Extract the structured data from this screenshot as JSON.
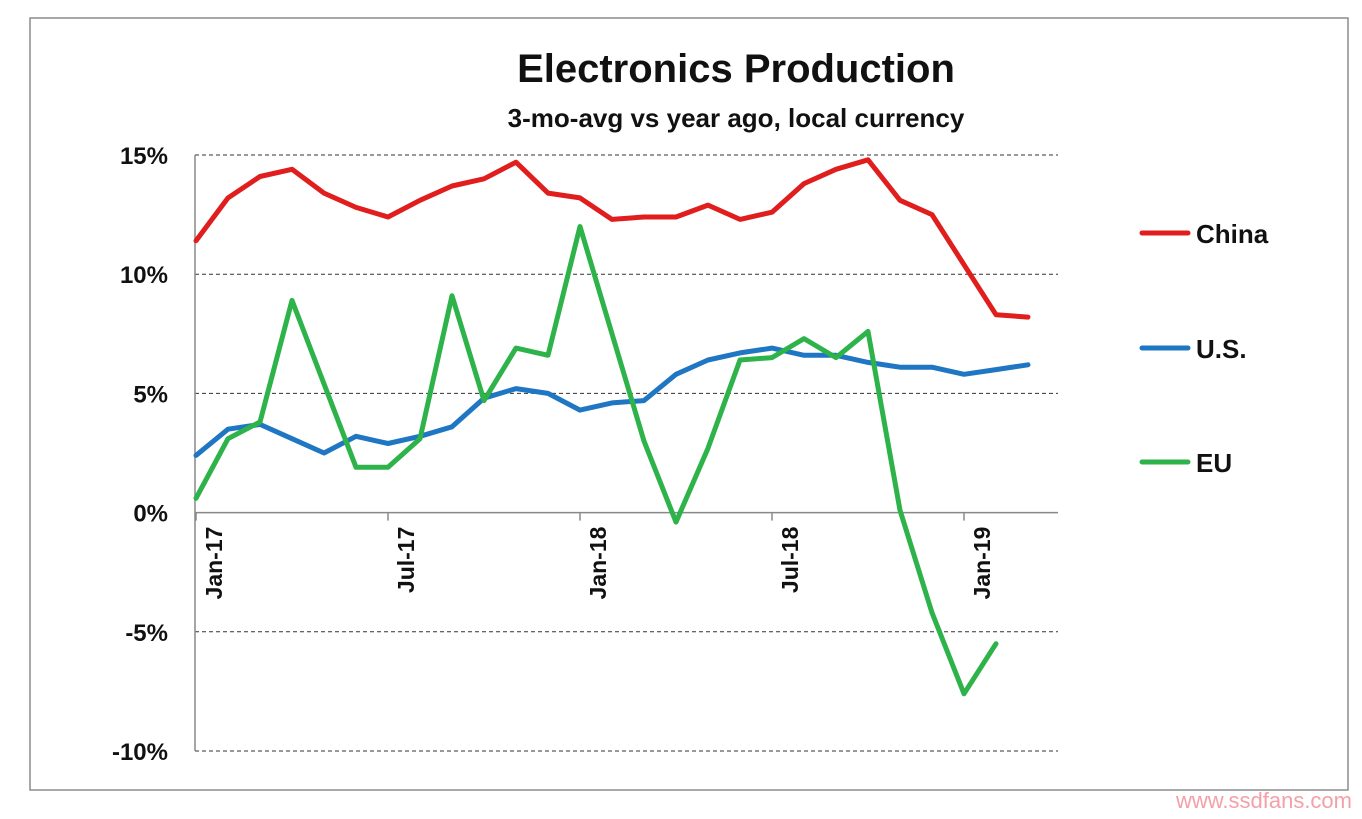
{
  "watermark": "www.ssdfans.com",
  "chart_data": {
    "type": "line",
    "title": "Electronics Production",
    "subtitle": "3-mo-avg vs year ago, local currency",
    "xlabel": "",
    "ylabel": "",
    "ylim": [
      -10,
      15
    ],
    "yticks": [
      15,
      10,
      5,
      0,
      -5,
      -10
    ],
    "ytick_labels": [
      "15%",
      "10%",
      "5%",
      "0%",
      "-5%",
      "-10%"
    ],
    "xtick_labels": [
      "Jan-17",
      "Jul-17",
      "Jan-18",
      "Jul-18",
      "Jan-19"
    ],
    "xtick_months": [
      0,
      6,
      12,
      18,
      24
    ],
    "grid": true,
    "legend": "right",
    "x": [
      "Jan-17",
      "Feb-17",
      "Mar-17",
      "Apr-17",
      "May-17",
      "Jun-17",
      "Jul-17",
      "Aug-17",
      "Sep-17",
      "Oct-17",
      "Nov-17",
      "Dec-17",
      "Jan-18",
      "Feb-18",
      "Mar-18",
      "Apr-18",
      "May-18",
      "Jun-18",
      "Jul-18",
      "Aug-18",
      "Sep-18",
      "Oct-18",
      "Nov-18",
      "Dec-18",
      "Jan-19",
      "Feb-19",
      "Mar-19"
    ],
    "series": [
      {
        "name": "China",
        "color": "#e01e1e",
        "values": [
          11.4,
          13.2,
          14.1,
          14.4,
          13.4,
          12.8,
          12.4,
          13.1,
          13.7,
          14.0,
          14.7,
          13.4,
          13.2,
          12.3,
          12.4,
          12.4,
          12.9,
          12.3,
          12.6,
          13.8,
          14.4,
          14.8,
          13.1,
          12.5,
          10.4,
          8.3,
          8.2
        ]
      },
      {
        "name": "U.S.",
        "color": "#1f77c4",
        "values": [
          2.4,
          3.5,
          3.7,
          3.1,
          2.5,
          3.2,
          2.9,
          3.2,
          3.6,
          4.8,
          5.2,
          5.0,
          4.3,
          4.6,
          4.7,
          5.8,
          6.4,
          6.7,
          6.9,
          6.6,
          6.6,
          6.3,
          6.1,
          6.1,
          5.8,
          6.0,
          6.2
        ]
      },
      {
        "name": "EU",
        "color": "#2db34a",
        "values": [
          0.6,
          3.1,
          3.8,
          8.9,
          5.4,
          1.9,
          1.9,
          3.1,
          9.1,
          4.7,
          6.9,
          6.6,
          12.0,
          7.5,
          3.0,
          -0.4,
          2.7,
          6.4,
          6.5,
          7.3,
          6.5,
          7.6,
          0.1,
          -4.2,
          -7.6,
          -5.5,
          null
        ]
      }
    ]
  }
}
